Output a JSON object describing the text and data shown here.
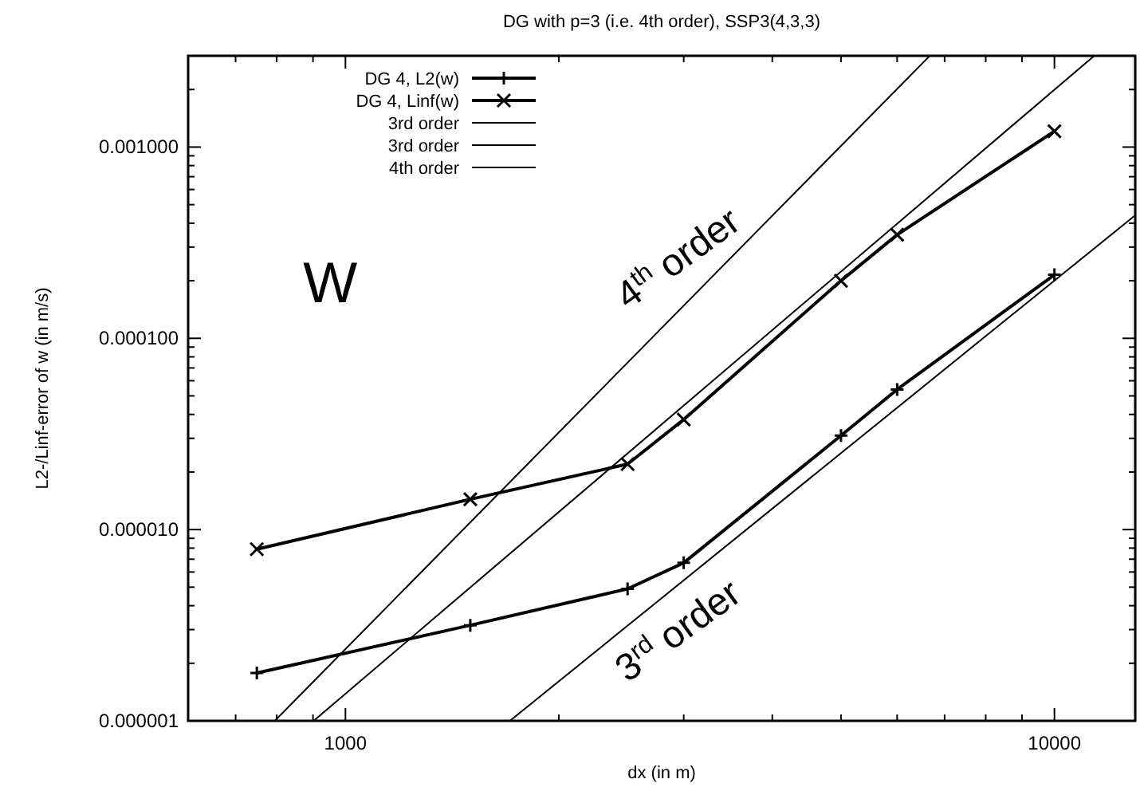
{
  "chart_data": {
    "type": "line",
    "title": "DG with p=3 (i.e. 4th order), SSP3(4,3,3)",
    "xlabel": "dx (in m)",
    "ylabel": "L2-/Linf-error of w (in m/s)",
    "log": "xy",
    "grid": false,
    "legend": "top left",
    "line_style": "solid",
    "xlim": [
      600,
      13000
    ],
    "ylim": [
      1e-06,
      0.003
    ],
    "xticks": [
      {
        "value": 600,
        "label": null
      },
      {
        "value": 700,
        "label": null
      },
      {
        "value": 800,
        "label": null
      },
      {
        "value": 900,
        "label": null
      },
      1000,
      {
        "value": 2000,
        "label": null
      },
      {
        "value": 3000,
        "label": null
      },
      {
        "value": 4000,
        "label": null
      },
      {
        "value": 5000,
        "label": null
      },
      {
        "value": 6000,
        "label": null
      },
      {
        "value": 7000,
        "label": null
      },
      {
        "value": 8000,
        "label": null
      },
      {
        "value": 9000,
        "label": null
      },
      10000
    ],
    "yticks": [
      {
        "value": 1e-06,
        "label": "0.000001"
      },
      {
        "value": 2e-06,
        "label": null
      },
      {
        "value": 3e-06,
        "label": null
      },
      {
        "value": 4e-06,
        "label": null
      },
      {
        "value": 5e-06,
        "label": null
      },
      {
        "value": 6e-06,
        "label": null
      },
      {
        "value": 7e-06,
        "label": null
      },
      {
        "value": 8e-06,
        "label": null
      },
      {
        "value": 9e-06,
        "label": null
      },
      {
        "value": 1e-05,
        "label": "0.000010"
      },
      {
        "value": 2e-05,
        "label": null
      },
      {
        "value": 3e-05,
        "label": null
      },
      {
        "value": 4e-05,
        "label": null
      },
      {
        "value": 5e-05,
        "label": null
      },
      {
        "value": 6e-05,
        "label": null
      },
      {
        "value": 7e-05,
        "label": null
      },
      {
        "value": 8e-05,
        "label": null
      },
      {
        "value": 9e-05,
        "label": null
      },
      {
        "value": 0.0001,
        "label": "0.000100"
      },
      {
        "value": 0.0002,
        "label": null
      },
      {
        "value": 0.0003,
        "label": null
      },
      {
        "value": 0.0004,
        "label": null
      },
      {
        "value": 0.0005,
        "label": null
      },
      {
        "value": 0.0006,
        "label": null
      },
      {
        "value": 0.0007,
        "label": null
      },
      {
        "value": 0.0008,
        "label": null
      },
      {
        "value": 0.0009,
        "label": null
      },
      {
        "value": 0.001,
        "label": "0.001000"
      },
      {
        "value": 0.002,
        "label": null
      },
      {
        "value": 0.003,
        "label": null
      }
    ],
    "series": [
      {
        "name": "DG 4, L2(w)",
        "color": "#000000",
        "marker": "plus",
        "x": [
          750,
          1500,
          2500,
          3000,
          5000,
          6000,
          10000
        ],
        "values": [
          1.78e-06,
          3.16e-06,
          4.9e-06,
          6.7e-06,
          3.1e-05,
          5.4e-05,
          0.000215
        ]
      },
      {
        "name": "DG 4, Linf(w)",
        "color": "#000000",
        "marker": "cross",
        "x": [
          750,
          1500,
          2500,
          3000,
          5000,
          6000,
          10000
        ],
        "values": [
          7.9e-06,
          1.44e-05,
          2.2e-05,
          3.76e-05,
          0.0002,
          0.000348,
          0.00121
        ]
      },
      {
        "name": "3rd order",
        "color": "#000000",
        "marker": "none",
        "x": [
          1706,
          13000
        ],
        "values": [
          1e-06,
          0.00044
        ]
      },
      {
        "name": "3rd order",
        "color": "#000000",
        "marker": "none",
        "x": [
          902,
          11380
        ],
        "values": [
          1e-06,
          0.003
        ]
      },
      {
        "name": "4th order",
        "color": "#000000",
        "marker": "none",
        "x": [
          795,
          6670
        ],
        "values": [
          1e-06,
          0.003
        ]
      }
    ],
    "annotations": [
      "4$^{th}$ order",
      "3$^{rd}$ order",
      "W"
    ]
  }
}
